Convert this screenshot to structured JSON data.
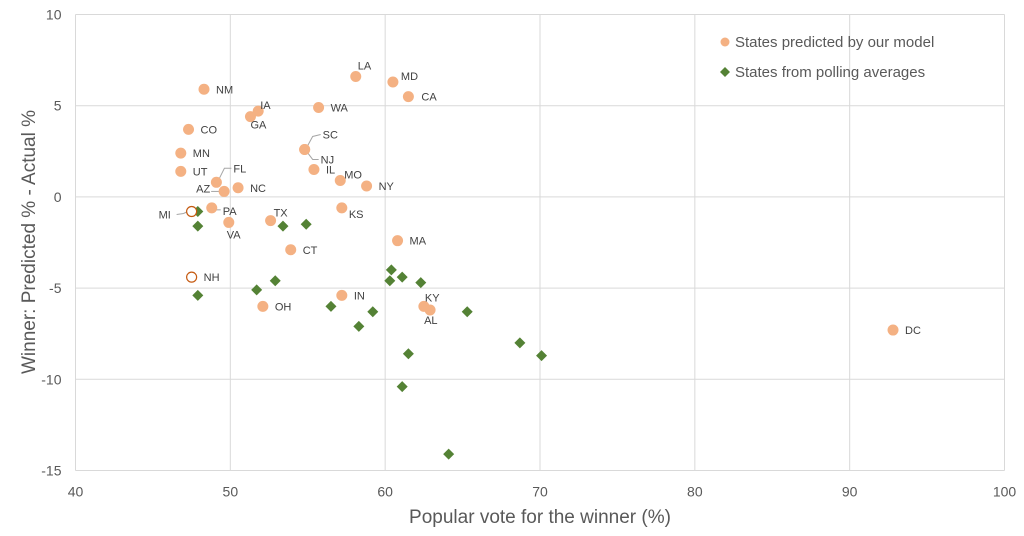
{
  "chart_data": {
    "type": "scatter",
    "title": "",
    "xlabel": "Popular vote for the winner (%)",
    "ylabel": "Winner: Predicted %  -  Actual %",
    "xlim": [
      40,
      100
    ],
    "ylim": [
      -15,
      10
    ],
    "xticks": [
      40,
      50,
      60,
      70,
      80,
      90,
      100
    ],
    "yticks": [
      10,
      5,
      0,
      -5,
      -10,
      -15
    ],
    "grid": true,
    "legend_position": "top-right",
    "series": [
      {
        "name": "States predicted by our model",
        "marker": "circle",
        "color": "#F4B183",
        "points": [
          {
            "label": "NM",
            "x": 48.3,
            "y": 5.9
          },
          {
            "label": "IA",
            "x": 51.8,
            "y": 4.7
          },
          {
            "label": "GA",
            "x": 51.3,
            "y": 4.4
          },
          {
            "label": "WA",
            "x": 55.7,
            "y": 4.9
          },
          {
            "label": "LA",
            "x": 58.1,
            "y": 6.6
          },
          {
            "label": "MD",
            "x": 60.5,
            "y": 6.3
          },
          {
            "label": "CA",
            "x": 61.5,
            "y": 5.5
          },
          {
            "label": "CO",
            "x": 47.3,
            "y": 3.7
          },
          {
            "label": "MN",
            "x": 46.8,
            "y": 2.4
          },
          {
            "label": "UT",
            "x": 46.8,
            "y": 1.4
          },
          {
            "label": "SC",
            "x": 54.8,
            "y": 2.6
          },
          {
            "label": "NJ",
            "x": 54.8,
            "y": 2.6
          },
          {
            "label": "IL",
            "x": 55.4,
            "y": 1.5
          },
          {
            "label": "MO",
            "x": 57.1,
            "y": 0.9
          },
          {
            "label": "NY",
            "x": 58.8,
            "y": 0.6
          },
          {
            "label": "FL",
            "x": 49.1,
            "y": 0.8
          },
          {
            "label": "AZ",
            "x": 49.6,
            "y": 0.3
          },
          {
            "label": "NC",
            "x": 50.5,
            "y": 0.5
          },
          {
            "label": "MI",
            "x": 47.5,
            "y": -0.8,
            "hollow": true
          },
          {
            "label": "PA",
            "x": 48.8,
            "y": -0.6
          },
          {
            "label": "VA",
            "x": 49.9,
            "y": -1.4
          },
          {
            "label": "TX",
            "x": 52.6,
            "y": -1.3
          },
          {
            "label": "KS",
            "x": 57.2,
            "y": -0.6
          },
          {
            "label": "CT",
            "x": 53.9,
            "y": -2.9
          },
          {
            "label": "MA",
            "x": 60.8,
            "y": -2.4
          },
          {
            "label": "NH",
            "x": 47.5,
            "y": -4.4,
            "hollow": true
          },
          {
            "label": "OH",
            "x": 52.1,
            "y": -6.0
          },
          {
            "label": "IN",
            "x": 57.2,
            "y": -5.4
          },
          {
            "label": "KY",
            "x": 62.5,
            "y": -6.0
          },
          {
            "label": "AL",
            "x": 62.9,
            "y": -6.2
          },
          {
            "label": "DC",
            "x": 92.8,
            "y": -7.3
          }
        ]
      },
      {
        "name": "States from polling averages",
        "marker": "diamond",
        "color": "#548235",
        "points": [
          {
            "x": 47.9,
            "y": -0.8
          },
          {
            "x": 47.9,
            "y": -1.6
          },
          {
            "x": 53.4,
            "y": -1.6
          },
          {
            "x": 54.9,
            "y": -1.5
          },
          {
            "x": 52.9,
            "y": -4.6
          },
          {
            "x": 51.7,
            "y": -5.1
          },
          {
            "x": 47.9,
            "y": -5.4
          },
          {
            "x": 56.5,
            "y": -6.0
          },
          {
            "x": 58.3,
            "y": -7.1
          },
          {
            "x": 59.2,
            "y": -6.3
          },
          {
            "x": 60.4,
            "y": -4.0
          },
          {
            "x": 60.3,
            "y": -4.6
          },
          {
            "x": 61.1,
            "y": -4.4
          },
          {
            "x": 62.3,
            "y": -4.7
          },
          {
            "x": 65.3,
            "y": -6.3
          },
          {
            "x": 61.5,
            "y": -8.6
          },
          {
            "x": 61.1,
            "y": -10.4
          },
          {
            "x": 64.1,
            "y": -14.1
          },
          {
            "x": 68.7,
            "y": -8.0
          },
          {
            "x": 70.1,
            "y": -8.7
          }
        ]
      }
    ]
  },
  "labels": {
    "NM": {
      "dx": 12,
      "dy": 4
    },
    "IA": {
      "dx": 2,
      "dy": -2
    },
    "GA": {
      "dx": 0,
      "dy": 12
    },
    "WA": {
      "dx": 12,
      "dy": 4
    },
    "LA": {
      "dx": 2,
      "dy": -7
    },
    "MD": {
      "dx": 8,
      "dy": -2
    },
    "CA": {
      "dx": 13,
      "dy": 4
    },
    "CO": {
      "dx": 12,
      "dy": 4
    },
    "MN": {
      "dx": 12,
      "dy": 4
    },
    "UT": {
      "dx": 12,
      "dy": 4
    },
    "SC": {
      "dx": 18,
      "dy": -11,
      "leader": [
        [
          2,
          -2
        ],
        [
          8,
          -13
        ],
        [
          16,
          -15
        ]
      ]
    },
    "NJ": {
      "dx": 16,
      "dy": 14,
      "leader": [
        [
          2,
          2
        ],
        [
          8,
          10
        ],
        [
          14,
          10
        ]
      ]
    },
    "IL": {
      "dx": 12,
      "dy": 4
    },
    "MO": {
      "dx": 4,
      "dy": -2
    },
    "NY": {
      "dx": 12,
      "dy": 4
    },
    "FL": {
      "dx": 17,
      "dy": -10,
      "leader": [
        [
          3,
          -4
        ],
        [
          8,
          -14
        ],
        [
          15,
          -14
        ]
      ]
    },
    "AZ": {
      "dx": -28,
      "dy": 1,
      "leader": [
        [
          -5,
          0
        ],
        [
          -13,
          0
        ]
      ]
    },
    "NC": {
      "dx": 12,
      "dy": 4
    },
    "MI": {
      "dx": -33,
      "dy": 7,
      "leader": [
        [
          -4,
          0
        ],
        [
          -8,
          2
        ],
        [
          -15,
          3
        ]
      ]
    },
    "PA": {
      "dx": 11,
      "dy": 7,
      "leader": [
        [
          4,
          2
        ],
        [
          9,
          2
        ]
      ]
    },
    "VA": {
      "dx": -2,
      "dy": 16
    },
    "TX": {
      "dx": 3,
      "dy": -4
    },
    "KS": {
      "dx": 7,
      "dy": 10
    },
    "CT": {
      "dx": 12,
      "dy": 4
    },
    "MA": {
      "dx": 12,
      "dy": 4
    },
    "NH": {
      "dx": 12,
      "dy": 4
    },
    "OH": {
      "dx": 12,
      "dy": 4
    },
    "IN": {
      "dx": 12,
      "dy": 4
    },
    "KY": {
      "dx": 1,
      "dy": -5
    },
    "AL": {
      "dx": -6,
      "dy": 14
    },
    "DC": {
      "dx": 12,
      "dy": 4
    }
  },
  "colors": {
    "grid": "#D9D9D9",
    "axis_text": "#595959",
    "hollow_stroke": "#C55A11"
  }
}
